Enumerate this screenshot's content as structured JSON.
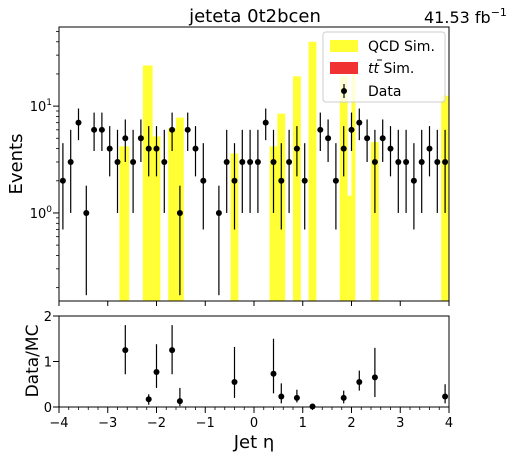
{
  "header": {
    "title": "jeteta  0t2bcen",
    "lumi_value": "41.53 fb",
    "lumi_exp": "−1"
  },
  "legend": {
    "qcd": "QCD Sim.",
    "ttbar_main": "t",
    "ttbar_rest": " Sim.",
    "data": "Data"
  },
  "colors": {
    "qcd": "#ffff33",
    "ttbar": "#f03232",
    "data": "#000000"
  },
  "chart_data": [
    {
      "type": "bar",
      "title": "jeteta  0t2bcen",
      "ylabel": "Events",
      "yscale": "log",
      "ylim": [
        0.15,
        55
      ],
      "xlim": [
        -4,
        4
      ],
      "grid": false,
      "legend_position": "top-right",
      "y_ticks": [
        {
          "v": 1,
          "m": "10",
          "e": "0"
        },
        {
          "v": 10,
          "m": "10",
          "e": "1"
        }
      ],
      "qcd_bins": [
        {
          "x0": -2.76,
          "x1": -2.56,
          "y": 4.2
        },
        {
          "x0": -2.28,
          "x1": -2.08,
          "y": 24
        },
        {
          "x0": -2.08,
          "x1": -1.92,
          "y": 5.2
        },
        {
          "x0": -1.76,
          "x1": -1.6,
          "y": 6.2
        },
        {
          "x0": -1.6,
          "x1": -1.44,
          "y": 7.8
        },
        {
          "x0": -0.48,
          "x1": -0.32,
          "y": 3.6
        },
        {
          "x0": 0.32,
          "x1": 0.48,
          "y": 4.2
        },
        {
          "x0": 0.48,
          "x1": 0.64,
          "y": 8.5
        },
        {
          "x0": 0.8,
          "x1": 0.96,
          "y": 19
        },
        {
          "x0": 1.12,
          "x1": 1.28,
          "y": 40
        },
        {
          "x0": 1.76,
          "x1": 1.92,
          "y": 19
        },
        {
          "x0": 1.92,
          "x1": 2.0,
          "y": 1.45
        },
        {
          "x0": 2.0,
          "x1": 2.08,
          "y": 20
        },
        {
          "x0": 2.4,
          "x1": 2.56,
          "y": 4.6
        },
        {
          "x0": 3.84,
          "x1": 4.0,
          "y": 12.5
        }
      ],
      "data_points": [
        {
          "x": -3.92,
          "y": 2,
          "lo": 0.7,
          "hi": 4.5
        },
        {
          "x": -3.76,
          "y": 3,
          "lo": 1.0,
          "hi": 6.0
        },
        {
          "x": -3.6,
          "y": 7,
          "lo": 4.8,
          "hi": 9.5
        },
        {
          "x": -3.44,
          "y": 1,
          "lo": 0.17,
          "hi": 1.8
        },
        {
          "x": -3.28,
          "y": 6,
          "lo": 3.8,
          "hi": 8.7
        },
        {
          "x": -3.12,
          "y": 6,
          "lo": 3.8,
          "hi": 8.7
        },
        {
          "x": -2.96,
          "y": 4,
          "lo": 2.2,
          "hi": 6.5
        },
        {
          "x": -2.8,
          "y": 3,
          "lo": 1.0,
          "hi": 6.0
        },
        {
          "x": -2.64,
          "y": 5,
          "lo": 3.0,
          "hi": 7.5
        },
        {
          "x": -2.48,
          "y": 3,
          "lo": 1.0,
          "hi": 6.0
        },
        {
          "x": -2.32,
          "y": 5,
          "lo": 3.0,
          "hi": 7.5
        },
        {
          "x": -2.16,
          "y": 4,
          "lo": 2.2,
          "hi": 6.5
        },
        {
          "x": -2.0,
          "y": 4,
          "lo": 2.2,
          "hi": 6.5
        },
        {
          "x": -1.84,
          "y": 3,
          "lo": 1.0,
          "hi": 6.0
        },
        {
          "x": -1.68,
          "y": 6,
          "lo": 3.8,
          "hi": 8.7
        },
        {
          "x": -1.52,
          "y": 1,
          "lo": 0.17,
          "hi": 1.8
        },
        {
          "x": -1.36,
          "y": 6,
          "lo": 3.8,
          "hi": 8.7
        },
        {
          "x": -1.2,
          "y": 4,
          "lo": 2.2,
          "hi": 6.5
        },
        {
          "x": -1.04,
          "y": 2,
          "lo": 0.7,
          "hi": 4.5
        },
        {
          "x": -0.72,
          "y": 1,
          "lo": 0.17,
          "hi": 1.8
        },
        {
          "x": -0.56,
          "y": 3,
          "lo": 1.0,
          "hi": 6.0
        },
        {
          "x": -0.4,
          "y": 2,
          "lo": 0.7,
          "hi": 4.5
        },
        {
          "x": -0.24,
          "y": 3,
          "lo": 1.0,
          "hi": 6.0
        },
        {
          "x": -0.08,
          "y": 3,
          "lo": 1.0,
          "hi": 6.0
        },
        {
          "x": 0.08,
          "y": 3,
          "lo": 1.0,
          "hi": 6.0
        },
        {
          "x": 0.24,
          "y": 7,
          "lo": 4.8,
          "hi": 9.5
        },
        {
          "x": 0.4,
          "y": 3,
          "lo": 1.0,
          "hi": 6.0
        },
        {
          "x": 0.56,
          "y": 2,
          "lo": 0.7,
          "hi": 4.5
        },
        {
          "x": 0.72,
          "y": 3,
          "lo": 1.0,
          "hi": 6.0
        },
        {
          "x": 0.88,
          "y": 4,
          "lo": 2.2,
          "hi": 6.5
        },
        {
          "x": 1.04,
          "y": 2,
          "lo": 0.7,
          "hi": 4.5
        },
        {
          "x": 1.36,
          "y": 6,
          "lo": 3.8,
          "hi": 8.7
        },
        {
          "x": 1.52,
          "y": 5,
          "lo": 3.0,
          "hi": 7.5
        },
        {
          "x": 1.68,
          "y": 2,
          "lo": 0.7,
          "hi": 4.5
        },
        {
          "x": 1.84,
          "y": 4,
          "lo": 2.2,
          "hi": 6.5
        },
        {
          "x": 2.0,
          "y": 6,
          "lo": 3.8,
          "hi": 8.7
        },
        {
          "x": 2.16,
          "y": 7,
          "lo": 4.8,
          "hi": 9.5
        },
        {
          "x": 2.32,
          "y": 5,
          "lo": 3.0,
          "hi": 7.5
        },
        {
          "x": 2.48,
          "y": 3,
          "lo": 1.0,
          "hi": 6.0
        },
        {
          "x": 2.64,
          "y": 5,
          "lo": 3.0,
          "hi": 7.5
        },
        {
          "x": 2.8,
          "y": 4,
          "lo": 2.2,
          "hi": 6.5
        },
        {
          "x": 2.96,
          "y": 3,
          "lo": 1.0,
          "hi": 6.0
        },
        {
          "x": 3.12,
          "y": 3,
          "lo": 1.0,
          "hi": 6.0
        },
        {
          "x": 3.28,
          "y": 2,
          "lo": 0.7,
          "hi": 4.5
        },
        {
          "x": 3.44,
          "y": 3,
          "lo": 1.0,
          "hi": 6.0
        },
        {
          "x": 3.6,
          "y": 4,
          "lo": 2.2,
          "hi": 6.5
        },
        {
          "x": 3.76,
          "y": 3,
          "lo": 1.0,
          "hi": 6.0
        },
        {
          "x": 3.92,
          "y": 3,
          "lo": 1.0,
          "hi": 6.0
        }
      ]
    },
    {
      "type": "scatter",
      "xlabel": "Jet η",
      "ylabel": "Data/MC",
      "ylim": [
        0,
        2
      ],
      "xlim": [
        -4,
        4
      ],
      "y_ticks": [
        0,
        1,
        2
      ],
      "x_ticks": [
        "−4",
        "−3",
        "−2",
        "−1",
        "0",
        "1",
        "2",
        "3",
        "4"
      ],
      "ratio_points": [
        {
          "x": -2.64,
          "y": 1.25,
          "lo": 0.72,
          "hi": 1.8
        },
        {
          "x": -2.16,
          "y": 0.17,
          "lo": 0.05,
          "hi": 0.28
        },
        {
          "x": -2.0,
          "y": 0.77,
          "lo": 0.42,
          "hi": 1.38
        },
        {
          "x": -1.68,
          "y": 1.25,
          "lo": 0.72,
          "hi": 1.8
        },
        {
          "x": -1.52,
          "y": 0.13,
          "lo": 0.02,
          "hi": 0.42
        },
        {
          "x": -0.4,
          "y": 0.55,
          "lo": 0.2,
          "hi": 1.32
        },
        {
          "x": 0.4,
          "y": 0.73,
          "lo": 0.3,
          "hi": 1.5
        },
        {
          "x": 0.56,
          "y": 0.23,
          "lo": 0.08,
          "hi": 0.52
        },
        {
          "x": 0.88,
          "y": 0.2,
          "lo": 0.1,
          "hi": 0.38
        },
        {
          "x": 1.2,
          "y": 0.01,
          "lo": 0.0,
          "hi": 0.04
        },
        {
          "x": 1.84,
          "y": 0.2,
          "lo": 0.08,
          "hi": 0.36
        },
        {
          "x": 2.16,
          "y": 0.55,
          "lo": 0.36,
          "hi": 0.8
        },
        {
          "x": 2.48,
          "y": 0.65,
          "lo": 0.22,
          "hi": 1.3
        },
        {
          "x": 3.92,
          "y": 0.23,
          "lo": 0.08,
          "hi": 0.5
        }
      ]
    }
  ]
}
